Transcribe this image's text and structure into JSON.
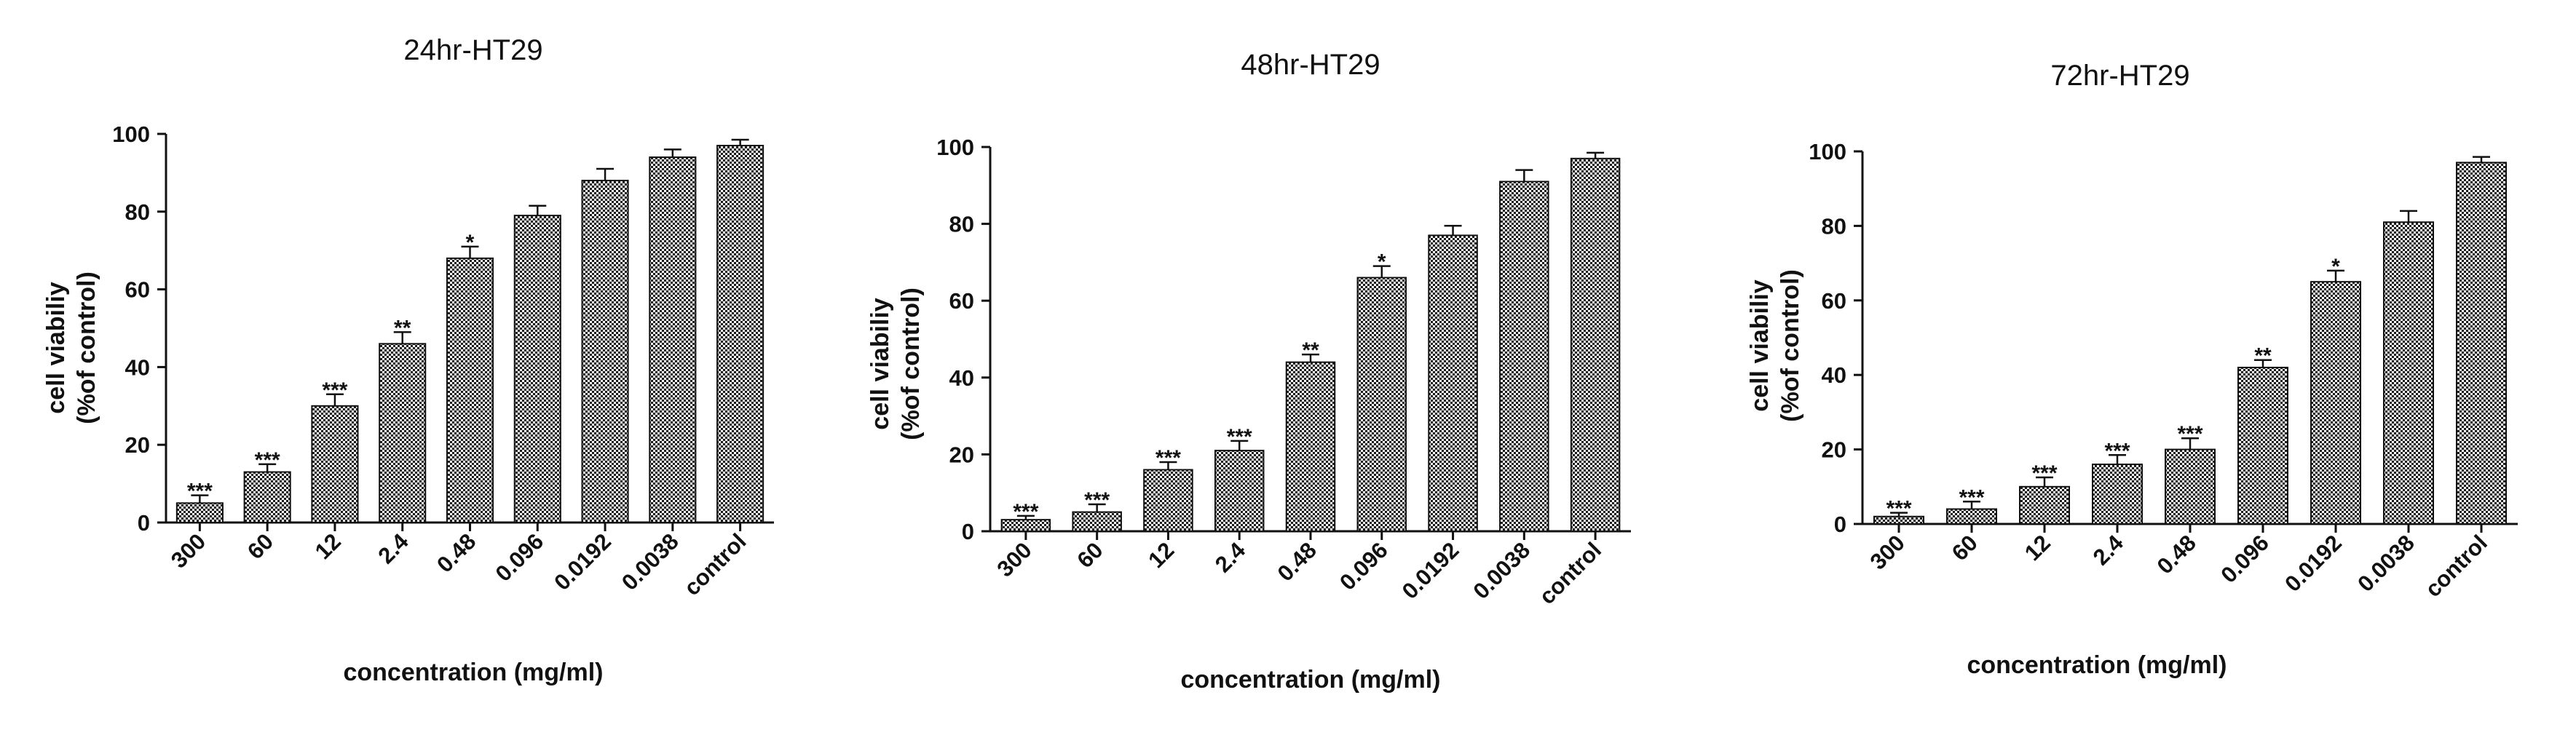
{
  "chart_data": [
    {
      "type": "bar",
      "title": "24hr-HT29",
      "xlabel": "concentration (mg/ml)",
      "ylabel_line1": "cell viabiliy",
      "ylabel_line2": "(%of control)",
      "ylim": [
        0,
        100
      ],
      "yticks": [
        0,
        20,
        40,
        60,
        80,
        100
      ],
      "categories": [
        "300",
        "60",
        "12",
        "2.4",
        "0.48",
        "0.096",
        "0.0192",
        "0.0038",
        "control"
      ],
      "values": [
        5,
        13,
        30,
        46,
        68,
        79,
        88,
        94,
        97
      ],
      "errors": [
        2,
        2,
        3,
        3,
        3,
        2.5,
        3,
        2,
        1.5
      ],
      "significance": [
        "***",
        "***",
        "***",
        "**",
        "*",
        "",
        "",
        "",
        ""
      ],
      "grid": false,
      "legend": "none"
    },
    {
      "type": "bar",
      "title": "48hr-HT29",
      "xlabel": "concentration (mg/ml)",
      "ylabel_line1": "cell viabiliy",
      "ylabel_line2": "(%of control)",
      "ylim": [
        0,
        100
      ],
      "yticks": [
        0,
        20,
        40,
        60,
        80,
        100
      ],
      "categories": [
        "300",
        "60",
        "12",
        "2.4",
        "0.48",
        "0.096",
        "0.0192",
        "0.0038",
        "control"
      ],
      "values": [
        3,
        5,
        16,
        21,
        44,
        66,
        77,
        91,
        97
      ],
      "errors": [
        1,
        2,
        2,
        2.5,
        2,
        3,
        2.5,
        3,
        1.5
      ],
      "significance": [
        "***",
        "***",
        "***",
        "***",
        "**",
        "*",
        "",
        "",
        ""
      ],
      "grid": false,
      "legend": "none"
    },
    {
      "type": "bar",
      "title": "72hr-HT29",
      "xlabel": "concentration (mg/ml)",
      "ylabel_line1": "cell viabiliy",
      "ylabel_line2": "(%of control)",
      "ylim": [
        0,
        100
      ],
      "yticks": [
        0,
        20,
        40,
        60,
        80,
        100
      ],
      "categories": [
        "300",
        "60",
        "12",
        "2.4",
        "0.48",
        "0.096",
        "0.0192",
        "0.0038",
        "control"
      ],
      "values": [
        2,
        4,
        10,
        16,
        20,
        42,
        65,
        81,
        97
      ],
      "errors": [
        1,
        2,
        2.5,
        2.5,
        3,
        2,
        3,
        3,
        1.5
      ],
      "significance": [
        "***",
        "***",
        "***",
        "***",
        "***",
        "**",
        "*",
        "",
        ""
      ],
      "grid": false,
      "legend": "none"
    }
  ],
  "colors": {
    "ink": "#111111",
    "bar_fill_pattern": "checkerboard",
    "pattern_dark": "#1a1a1a",
    "pattern_light": "#ffffff",
    "background": "#ffffff"
  }
}
